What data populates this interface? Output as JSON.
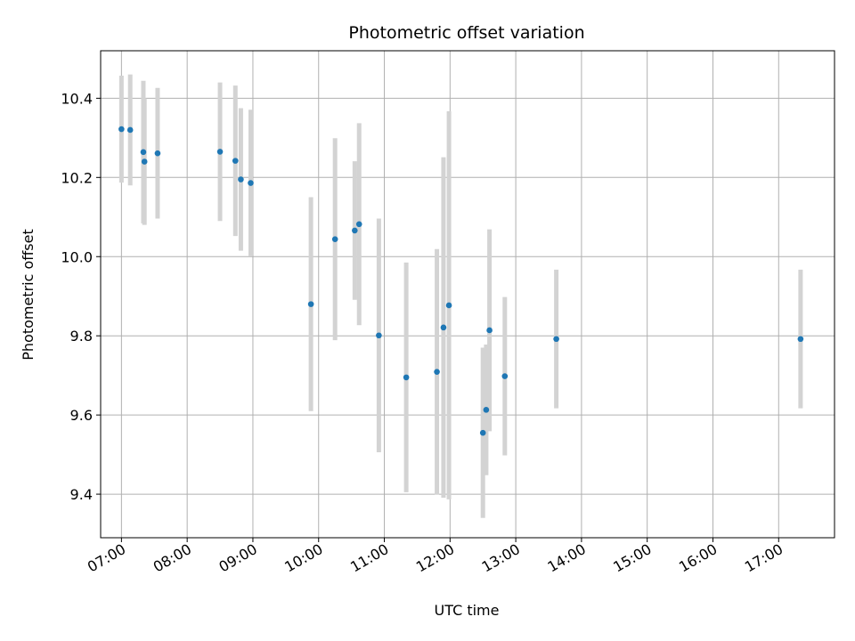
{
  "chart_data": {
    "type": "scatter",
    "title": "Photometric offset variation",
    "xlabel": "UTC time",
    "ylabel": "Photometric offset",
    "x_ticks": [
      "07:00",
      "08:00",
      "09:00",
      "10:00",
      "11:00",
      "12:00",
      "13:00",
      "14:00",
      "15:00",
      "16:00",
      "17:00"
    ],
    "y_ticks": [
      9.4,
      9.6,
      9.8,
      10.0,
      10.2,
      10.4
    ],
    "xlim": [
      "06:41",
      "17:51"
    ],
    "ylim": [
      9.29,
      10.52
    ],
    "grid": true,
    "colors": {
      "point": "#1f77b4",
      "errorbar": "#d3d3d3",
      "grid": "#b0b0b0"
    },
    "points": [
      {
        "x": "07:00",
        "y": 10.322,
        "yerr": 0.135
      },
      {
        "x": "07:08",
        "y": 10.32,
        "yerr": 0.14
      },
      {
        "x": "07:20",
        "y": 10.264,
        "yerr": 0.18
      },
      {
        "x": "07:21",
        "y": 10.24,
        "yerr": 0.16
      },
      {
        "x": "07:33",
        "y": 10.261,
        "yerr": 0.165
      },
      {
        "x": "08:30",
        "y": 10.265,
        "yerr": 0.175
      },
      {
        "x": "08:44",
        "y": 10.242,
        "yerr": 0.19
      },
      {
        "x": "08:49",
        "y": 10.195,
        "yerr": 0.18
      },
      {
        "x": "08:58",
        "y": 10.186,
        "yerr": 0.185
      },
      {
        "x": "09:53",
        "y": 9.88,
        "yerr": 0.27
      },
      {
        "x": "10:15",
        "y": 10.044,
        "yerr": 0.255
      },
      {
        "x": "10:33",
        "y": 10.066,
        "yerr": 0.175
      },
      {
        "x": "10:37",
        "y": 10.082,
        "yerr": 0.255
      },
      {
        "x": "10:55",
        "y": 9.801,
        "yerr": 0.295
      },
      {
        "x": "11:20",
        "y": 9.695,
        "yerr": 0.29
      },
      {
        "x": "11:48",
        "y": 9.709,
        "yerr": 0.31
      },
      {
        "x": "11:54",
        "y": 9.821,
        "yerr": 0.43
      },
      {
        "x": "11:59",
        "y": 9.877,
        "yerr": 0.49
      },
      {
        "x": "12:30",
        "y": 9.555,
        "yerr": 0.215
      },
      {
        "x": "12:33",
        "y": 9.613,
        "yerr": 0.165
      },
      {
        "x": "12:36",
        "y": 9.814,
        "yerr": 0.255
      },
      {
        "x": "12:50",
        "y": 9.698,
        "yerr": 0.2
      },
      {
        "x": "13:37",
        "y": 9.792,
        "yerr": 0.175
      },
      {
        "x": "17:20",
        "y": 9.792,
        "yerr": 0.175
      }
    ]
  }
}
